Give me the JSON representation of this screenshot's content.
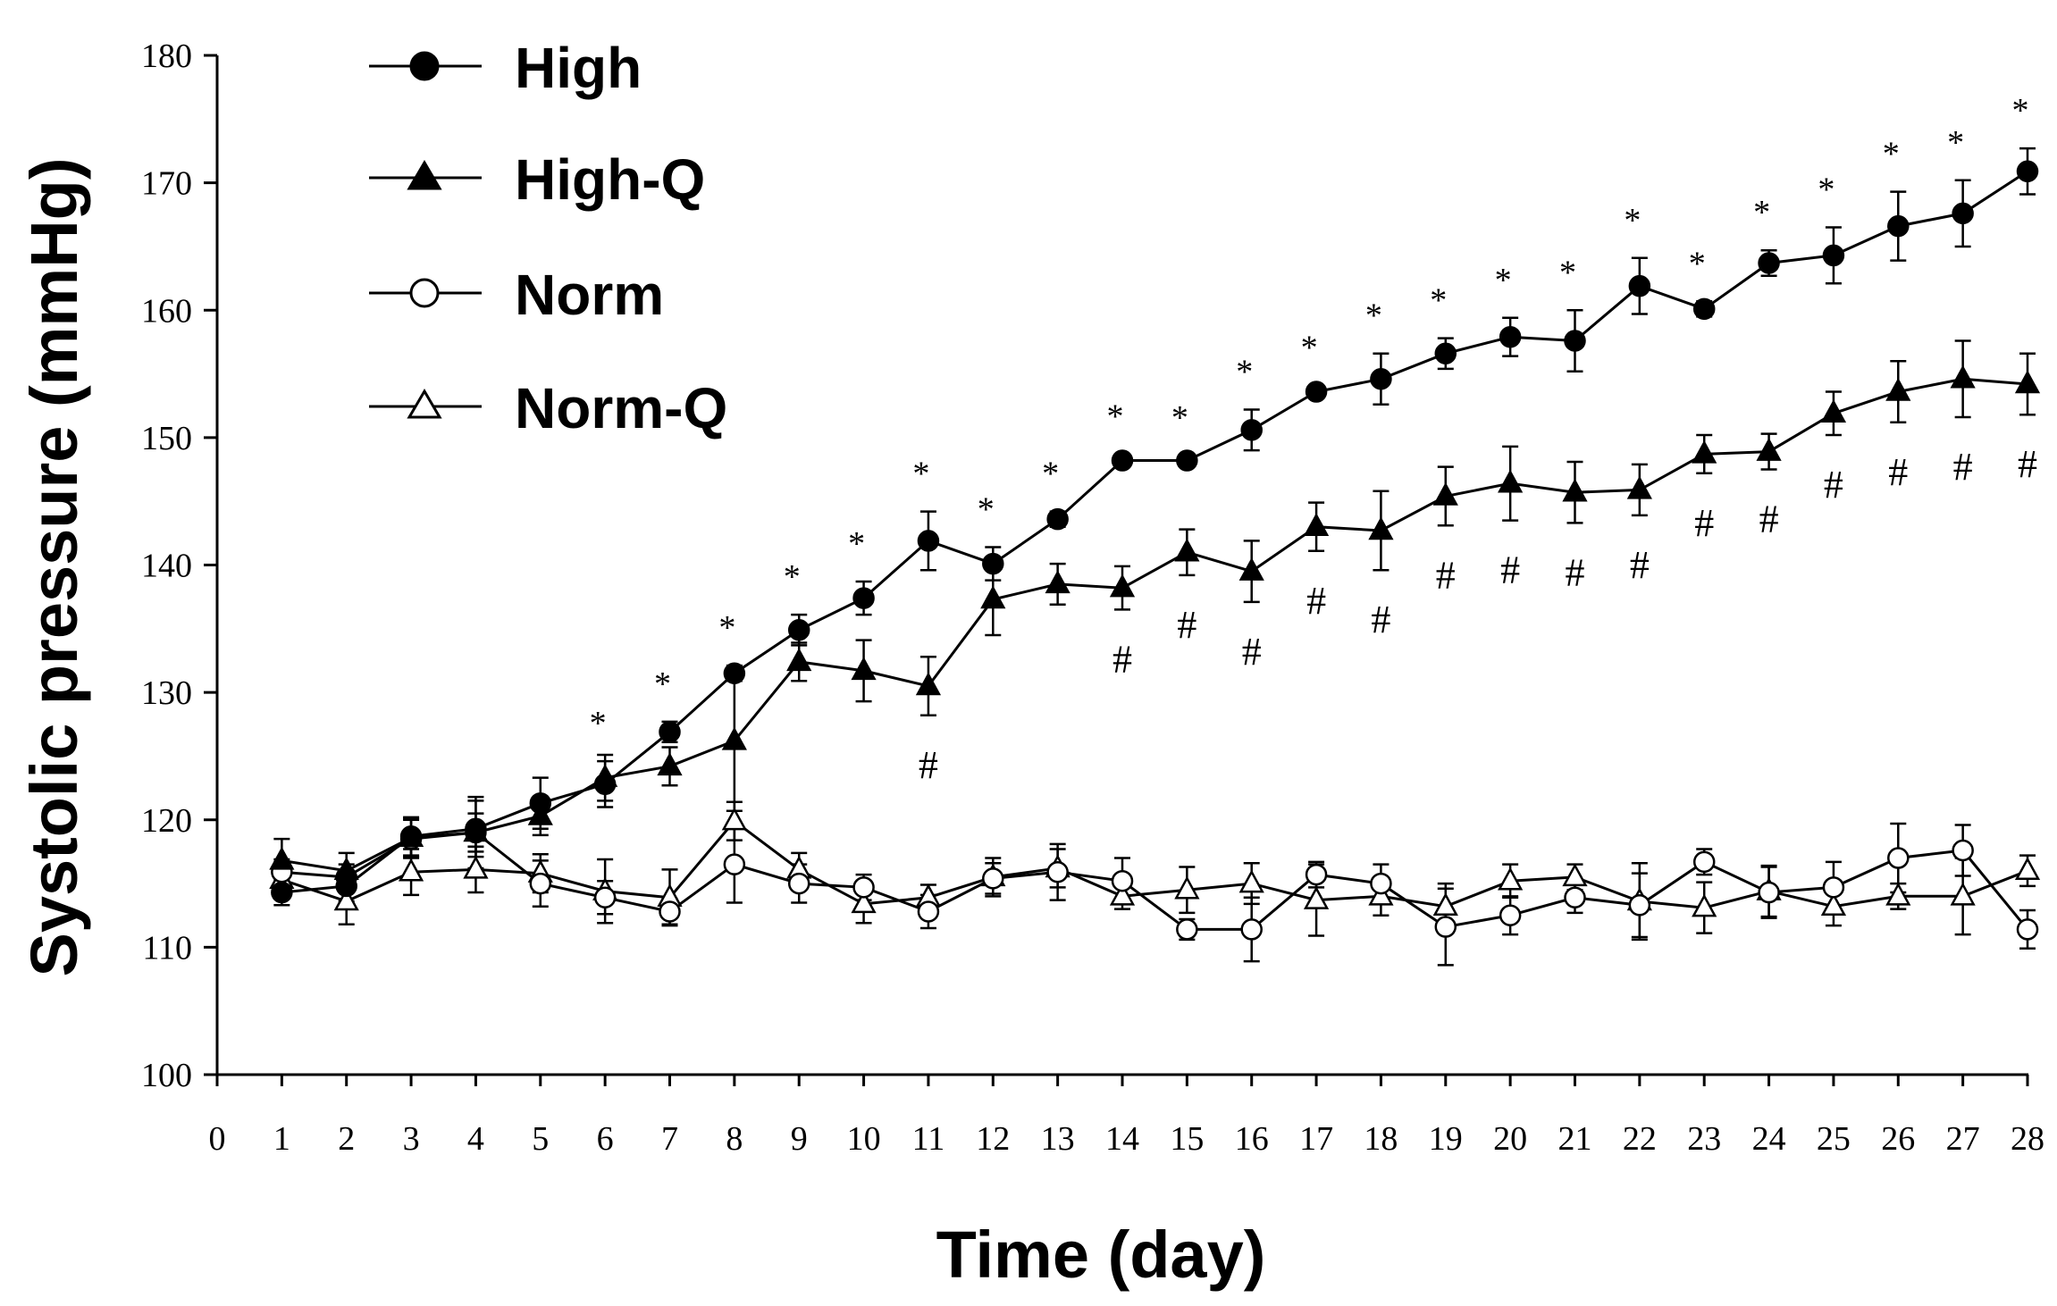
{
  "chart_data": {
    "type": "line",
    "title": "",
    "xlabel": "Time (day)",
    "ylabel": "Systolic pressure (mmHg)",
    "xlim": [
      0,
      28
    ],
    "ylim": [
      100,
      180
    ],
    "xticks": [
      0,
      1,
      2,
      3,
      4,
      5,
      6,
      7,
      8,
      9,
      10,
      11,
      12,
      13,
      14,
      15,
      16,
      17,
      18,
      19,
      20,
      21,
      22,
      23,
      24,
      25,
      26,
      27,
      28
    ],
    "yticks": [
      100,
      110,
      120,
      130,
      140,
      150,
      160,
      170,
      180
    ],
    "grid": false,
    "legend": "top-left",
    "x": [
      1,
      2,
      3,
      4,
      5,
      6,
      7,
      8,
      9,
      10,
      11,
      12,
      13,
      14,
      15,
      16,
      17,
      18,
      19,
      20,
      21,
      22,
      23,
      24,
      25,
      26,
      27,
      28
    ],
    "series": [
      {
        "name": "High",
        "marker": "filled-circle",
        "line_color": "#000000",
        "fill_color": "#000000",
        "values": [
          114.3,
          114.8,
          118.7,
          119.3,
          121.3,
          122.8,
          126.9,
          131.5,
          134.9,
          137.4,
          141.9,
          140.1,
          143.6,
          148.2,
          148.2,
          150.6,
          153.6,
          154.6,
          156.6,
          157.9,
          157.6,
          161.9,
          160.1,
          163.7,
          164.3,
          166.6,
          167.6,
          170.9
        ],
        "errors": [
          1.0,
          1.2,
          1.5,
          2.2,
          2.0,
          1.8,
          0.8,
          0.6,
          1.2,
          1.3,
          2.3,
          1.3,
          0.6,
          0.5,
          0.4,
          1.6,
          0.5,
          2.0,
          1.2,
          1.5,
          2.4,
          2.2,
          0.6,
          1.0,
          2.2,
          2.7,
          2.6,
          1.8
        ]
      },
      {
        "name": "High-Q",
        "marker": "filled-triangle",
        "line_color": "#000000",
        "fill_color": "#000000",
        "values": [
          116.8,
          116.0,
          118.6,
          119.0,
          120.3,
          123.3,
          124.2,
          126.2,
          132.4,
          131.7,
          130.5,
          137.3,
          138.5,
          138.2,
          141.0,
          139.5,
          143.0,
          142.7,
          145.4,
          146.4,
          145.7,
          145.9,
          148.7,
          148.9,
          151.9,
          153.6,
          154.6,
          154.2
        ],
        "errors": [
          1.7,
          1.4,
          1.5,
          2.8,
          1.5,
          1.8,
          1.5,
          5.5,
          1.5,
          2.4,
          2.3,
          2.8,
          1.6,
          1.7,
          1.8,
          2.4,
          1.9,
          3.1,
          2.3,
          2.9,
          2.4,
          2.0,
          1.5,
          1.4,
          1.7,
          2.4,
          3.0,
          2.4
        ]
      },
      {
        "name": "Norm",
        "marker": "open-circle",
        "line_color": "#000000",
        "fill_color": "#ffffff",
        "values": [
          115.9,
          115.5,
          118.5,
          119.0,
          115.0,
          113.9,
          112.8,
          116.5,
          115.0,
          114.7,
          112.8,
          115.4,
          115.9,
          115.2,
          111.4,
          111.4,
          115.7,
          115.0,
          111.6,
          112.5,
          113.9,
          113.3,
          116.7,
          114.3,
          114.7,
          117.0,
          117.6,
          111.4
        ],
        "errors": [
          1.0,
          1.0,
          1.5,
          1.5,
          1.8,
          1.3,
          1.0,
          3.0,
          1.5,
          1.0,
          1.3,
          1.2,
          2.2,
          1.8,
          0.8,
          2.5,
          1.0,
          1.5,
          3.0,
          1.5,
          1.2,
          2.5,
          1.0,
          2.0,
          2.0,
          2.7,
          2.0,
          1.5
        ]
      },
      {
        "name": "Norm-Q",
        "marker": "open-triangle",
        "line_color": "#000000",
        "fill_color": "#ffffff",
        "values": [
          115.3,
          113.6,
          115.9,
          116.1,
          115.8,
          114.4,
          113.9,
          119.9,
          116.1,
          113.4,
          113.9,
          115.5,
          116.2,
          114.0,
          114.5,
          115.0,
          113.7,
          114.0,
          113.2,
          115.2,
          115.5,
          113.6,
          113.1,
          114.4,
          113.2,
          114.0,
          114.0,
          116.0
        ],
        "errors": [
          1.4,
          1.8,
          1.8,
          1.8,
          1.5,
          2.5,
          2.2,
          1.5,
          1.3,
          1.5,
          1.0,
          1.5,
          1.5,
          1.0,
          1.8,
          1.6,
          2.8,
          1.5,
          1.8,
          1.3,
          1.0,
          3.0,
          2.0,
          2.0,
          1.5,
          1.0,
          3.0,
          1.2
        ]
      }
    ],
    "annotations": [
      {
        "text": "*",
        "series": "High",
        "position": "above",
        "days": [
          6,
          7,
          8,
          9,
          10,
          11,
          12,
          13,
          14,
          15,
          16,
          17,
          18,
          19,
          20,
          21,
          22,
          23,
          24,
          25,
          26,
          27,
          28
        ]
      },
      {
        "text": "#",
        "series": "High-Q",
        "position": "below",
        "days": [
          11,
          14,
          15,
          16,
          17,
          18,
          19,
          20,
          21,
          22,
          23,
          24,
          25,
          26,
          27,
          28
        ]
      }
    ]
  }
}
